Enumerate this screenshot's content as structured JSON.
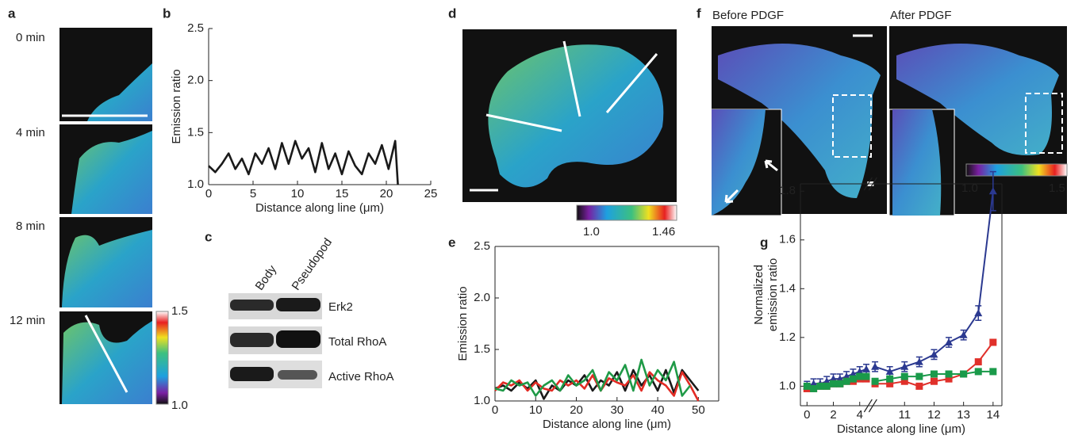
{
  "panel_labels": [
    "a",
    "b",
    "c",
    "d",
    "e",
    "f",
    "g"
  ],
  "panel_a": {
    "times": [
      "0 min",
      "4 min",
      "8 min",
      "12 min"
    ],
    "colorbar": [
      "1.5",
      "1.0"
    ]
  },
  "panel_c": {
    "columns": [
      "Body",
      "Pseudopod"
    ],
    "rows": [
      "Erk2",
      "Total RhoA",
      "Active RhoA"
    ]
  },
  "panel_d": {
    "colorbar": [
      "1.0",
      "1.46"
    ]
  },
  "panel_f": {
    "titles": [
      "Before PDGF",
      "After PDGF"
    ],
    "colorbar": [
      "1.0",
      "1.5"
    ]
  },
  "chart_data": [
    {
      "type": "line",
      "xlabel": "Distance along line (μm)",
      "ylabel": "Emission ratio",
      "frame": false,
      "x": [
        0,
        0.75,
        1.5,
        2.25,
        3,
        3.75,
        4.5,
        5.25,
        6,
        6.75,
        7.5,
        8.25,
        9,
        9.75,
        10.5,
        11.25,
        12,
        12.75,
        13.5,
        14.25,
        15,
        15.75,
        16.5,
        17.25,
        18,
        18.75,
        19.5,
        20.25,
        21,
        21.3
      ],
      "series": [
        {
          "color": "#1a1a1a",
          "values": [
            1.18,
            1.12,
            1.2,
            1.3,
            1.15,
            1.25,
            1.1,
            1.3,
            1.2,
            1.35,
            1.15,
            1.4,
            1.2,
            1.42,
            1.25,
            1.35,
            1.12,
            1.4,
            1.15,
            1.3,
            1.1,
            1.32,
            1.18,
            1.1,
            1.3,
            1.2,
            1.38,
            1.15,
            1.42,
            1.0
          ]
        }
      ],
      "xlim": [
        0,
        25
      ],
      "xticks": [
        0,
        5,
        10,
        15,
        20,
        25
      ],
      "ylim": [
        1,
        2.5
      ],
      "yticks": [
        {
          "value": 1,
          "label": "1.0"
        },
        1.5,
        {
          "value": 2,
          "label": "2.0"
        },
        2.5
      ]
    },
    {
      "type": "line",
      "xlabel": "Distance along line (μm)",
      "ylabel": "Emission ratio",
      "frame": true,
      "x": [
        0,
        2,
        4,
        6,
        8,
        10,
        12,
        14,
        16,
        18,
        20,
        22,
        24,
        26,
        28,
        30,
        32,
        34,
        36,
        38,
        40,
        42,
        44,
        46,
        48,
        50
      ],
      "series": [
        {
          "color": "#1a1a1a",
          "values": [
            1.12,
            1.15,
            1.1,
            1.18,
            1.12,
            1.2,
            1.02,
            1.15,
            1.1,
            1.2,
            1.15,
            1.25,
            1.1,
            1.2,
            1.15,
            1.28,
            1.1,
            1.3,
            1.15,
            1.25,
            1.1,
            1.3,
            1.08,
            1.3,
            1.2,
            1.1
          ]
        },
        {
          "color": "#e32b24",
          "values": [
            1.1,
            1.18,
            1.15,
            1.2,
            1.1,
            1.18,
            1.12,
            1.1,
            1.2,
            1.15,
            1.2,
            1.12,
            1.25,
            1.1,
            1.22,
            1.18,
            1.15,
            1.25,
            1.1,
            1.28,
            1.2,
            1.15,
            1.05,
            1.28,
            1.15,
            1.0
          ]
        },
        {
          "color": "#1f9a47",
          "values": [
            1.12,
            1.1,
            1.2,
            1.15,
            1.18,
            1.05,
            1.15,
            1.2,
            1.1,
            1.25,
            1.15,
            1.2,
            1.3,
            1.1,
            1.28,
            1.2,
            1.35,
            1.1,
            1.4,
            1.15,
            1.3,
            1.2,
            1.38,
            1.05,
            1.15,
            null
          ]
        }
      ],
      "xlim": [
        0,
        55
      ],
      "xticks": [
        0,
        10,
        20,
        30,
        40,
        50
      ],
      "ylim": [
        1,
        2.5
      ],
      "yticks": [
        {
          "value": 1,
          "label": "1.0"
        },
        1.5,
        {
          "value": 2,
          "label": "2.0"
        },
        2.5
      ]
    },
    {
      "type": "line",
      "xlabel": "Distance along line (μm)",
      "ylabel": [
        "Normalized",
        "emission ratio"
      ],
      "frame": true,
      "x": [
        0,
        0.5,
        1,
        1.5,
        2,
        2.5,
        3,
        3.5,
        4,
        4.5,
        10,
        10.5,
        11,
        11.5,
        12,
        12.5,
        13,
        13.5,
        14
      ],
      "xbreak": [
        4.7,
        9.9
      ],
      "series": [
        {
          "color": "#2b3990",
          "marker": "triangle",
          "values": [
            1.0,
            1.01,
            1.01,
            1.02,
            1.03,
            1.03,
            1.04,
            1.05,
            1.06,
            1.07,
            1.08,
            1.06,
            1.08,
            1.1,
            1.13,
            1.18,
            1.21,
            1.3,
            1.8
          ],
          "errors": [
            0.02,
            0.02,
            0.02,
            0.02,
            0.02,
            0.02,
            0.02,
            0.02,
            0.02,
            0.02,
            0.02,
            0.02,
            0.02,
            0.02,
            0.02,
            0.02,
            0.02,
            0.03,
            0.08
          ]
        },
        {
          "color": "#e0302a",
          "marker": "square",
          "values": [
            0.99,
            0.99,
            1.0,
            1.0,
            1.01,
            1.01,
            1.02,
            1.02,
            1.03,
            1.03,
            1.01,
            1.01,
            1.02,
            1.0,
            1.02,
            1.03,
            1.05,
            1.1,
            1.18
          ]
        },
        {
          "color": "#1a9a4a",
          "marker": "square",
          "values": [
            1.0,
            0.99,
            1.0,
            1.0,
            1.01,
            1.01,
            1.02,
            1.03,
            1.04,
            1.04,
            1.02,
            1.03,
            1.04,
            1.04,
            1.05,
            1.05,
            1.05,
            1.06,
            1.06
          ]
        }
      ],
      "xlim": [
        -0.5,
        14.3
      ],
      "xticks": [
        0,
        2,
        4,
        11,
        12,
        13,
        14
      ],
      "ylim": [
        0.92,
        1.83
      ],
      "yticks": [
        {
          "value": 1,
          "label": "1.0"
        },
        1.2,
        1.4,
        1.6,
        1.8
      ]
    }
  ]
}
